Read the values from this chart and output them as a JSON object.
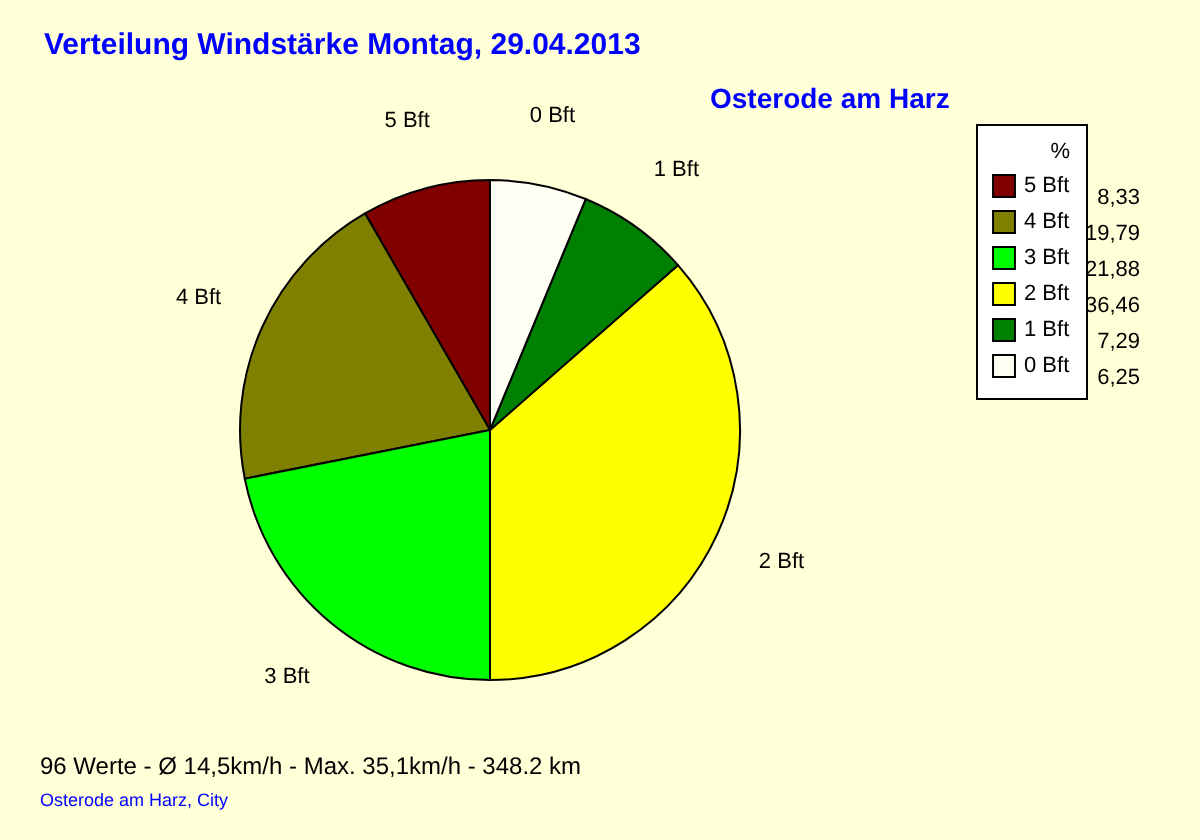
{
  "chart_data": {
    "type": "pie",
    "title": "Verteilung Windstärke  Montag, 29.04.2013",
    "subtitle": "Osterode am Harz",
    "legend_title": "%",
    "legend": "top right",
    "categories": [
      "5 Bft",
      "4 Bft",
      "3 Bft",
      "2 Bft",
      "1 Bft",
      "0 Bft"
    ],
    "values": [
      8.33,
      19.79,
      21.88,
      36.46,
      7.29,
      6.25
    ],
    "value_labels": [
      "8,33",
      "19,79",
      "21,88",
      "36,46",
      "7,29",
      "6,25"
    ],
    "colors": [
      "#800000",
      "#808000",
      "#00ff00",
      "#ffff00",
      "#008000",
      "#fffff4"
    ],
    "annotations": [
      "96 Werte   -   Ø 14,5km/h  -  Max. 35,1km/h   -   348.2 km",
      "Osterode am Harz, City"
    ]
  }
}
